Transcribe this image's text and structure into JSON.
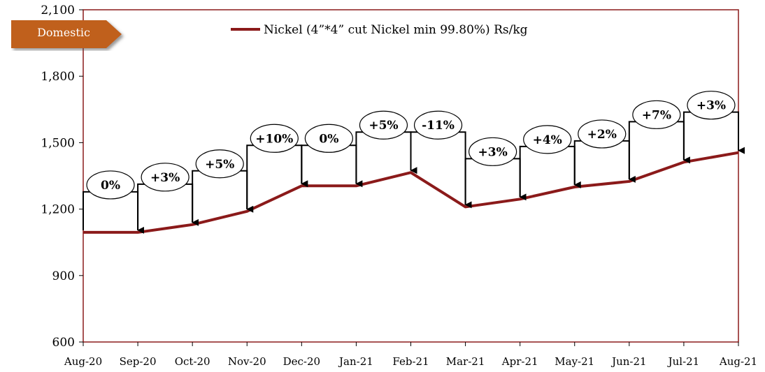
{
  "tag_label": "Domestic",
  "colors": {
    "line": "#8B1A1A",
    "frame": "#8B1A1A",
    "tag": "#C0601E"
  },
  "chart_data": {
    "type": "line",
    "x": [
      "Aug-20",
      "Sep-20",
      "Oct-20",
      "Nov-20",
      "Dec-20",
      "Jan-21",
      "Feb-21",
      "Mar-21",
      "Apr-21",
      "May-21",
      "Jun-21",
      "Jul-21",
      "Aug-21"
    ],
    "series": [
      {
        "name": "Nickel (4”*4” cut Nickel min 99.80%) Rs/kg",
        "values": [
          1095,
          1095,
          1130,
          1190,
          1305,
          1305,
          1365,
          1210,
          1245,
          1300,
          1325,
          1412,
          1455
        ]
      }
    ],
    "change_labels": [
      "0%",
      "+3%",
      "+5%",
      "+10%",
      "0%",
      "+5%",
      "-11%",
      "+3%",
      "+4%",
      "+2%",
      "+7%",
      "+3%"
    ],
    "yticks": [
      "600",
      "900",
      "1,200",
      "1,500",
      "1,800",
      "2,100"
    ],
    "ylim": [
      600,
      2100
    ],
    "legend": "top-center",
    "grid": false
  }
}
